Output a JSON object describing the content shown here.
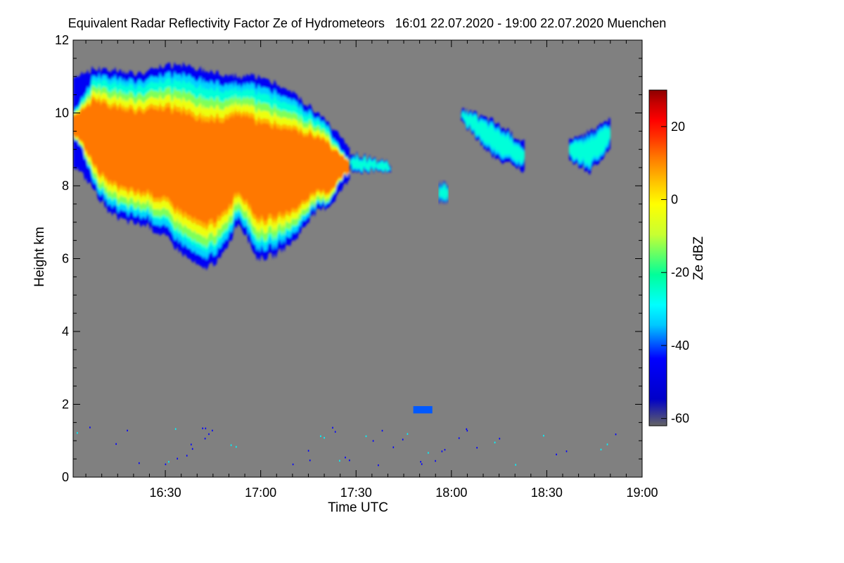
{
  "chart_data": {
    "type": "heatmap",
    "title": "Equivalent Radar Reflectivity Factor Ze of Hydrometeors   16:01 22.07.2020 - 19:00 22.07.2020 Muenchen",
    "xlabel": "Time UTC",
    "ylabel": "Height km",
    "x_range_minutes": [
      961,
      1140
    ],
    "x_ticks": [
      {
        "label": "16:30",
        "minutes": 990
      },
      {
        "label": "17:00",
        "minutes": 1020
      },
      {
        "label": "17:30",
        "minutes": 1050
      },
      {
        "label": "18:00",
        "minutes": 1080
      },
      {
        "label": "18:30",
        "minutes": 1110
      },
      {
        "label": "19:00",
        "minutes": 1140
      }
    ],
    "ylim": [
      0,
      12
    ],
    "y_ticks": [
      0,
      2,
      4,
      6,
      8,
      10,
      12
    ],
    "colorbar": {
      "label": "Ze dBZ",
      "range": [
        -62,
        30
      ],
      "ticks": [
        20,
        0,
        -20,
        -40,
        -60
      ],
      "colors": [
        "#646464",
        "#0000c8",
        "#0000ff",
        "#00c8ff",
        "#00ffff",
        "#00ff9a",
        "#c8ff32",
        "#ffff00",
        "#ffc800",
        "#ff7800",
        "#ff3200",
        "#ff0000",
        "#c80000",
        "#8c0000"
      ]
    },
    "background_color": "#808080",
    "echoes": [
      {
        "name": "main-cloud",
        "t_start": 961,
        "t_end": 1048,
        "base_km": [
          8.6,
          8.0,
          7.2,
          7.0,
          6.9,
          6.6,
          6.1,
          5.7,
          6.0,
          7.0,
          6.0,
          6.1,
          6.5,
          7.2,
          7.5,
          8.2
        ],
        "top_km": [
          11.0,
          11.2,
          11.2,
          11.1,
          11.1,
          11.3,
          11.3,
          11.2,
          11.1,
          11.0,
          11.0,
          10.8,
          10.5,
          10.1,
          9.6,
          9.0
        ],
        "peak_dbz": 14
      },
      {
        "name": "outflow-fragment",
        "t_start": 1048,
        "t_end": 1061,
        "base_km": [
          8.4,
          8.4
        ],
        "top_km": [
          8.9,
          8.6
        ],
        "peak_dbz": -22
      },
      {
        "name": "fallstreak",
        "t_start": 1076,
        "t_end": 1079,
        "base_km": [
          7.5,
          7.6
        ],
        "top_km": [
          8.1,
          8.0
        ],
        "peak_dbz": -20
      },
      {
        "name": "cirrus-band-1",
        "t_start": 1083,
        "t_end": 1103,
        "base_km": [
          9.8,
          8.8,
          8.4
        ],
        "top_km": [
          10.1,
          9.8,
          9.2
        ],
        "peak_dbz": -22
      },
      {
        "name": "cirrus-band-2",
        "t_start": 1117,
        "t_end": 1130,
        "base_km": [
          8.7,
          8.4,
          9.0
        ],
        "top_km": [
          9.2,
          9.5,
          9.8
        ],
        "peak_dbz": -22
      }
    ],
    "ground_clutter_km": [
      0.3,
      1.4
    ],
    "low_echo": {
      "t_start": 1068,
      "t_end": 1074,
      "height_km": 1.85,
      "dbz": -40
    }
  }
}
